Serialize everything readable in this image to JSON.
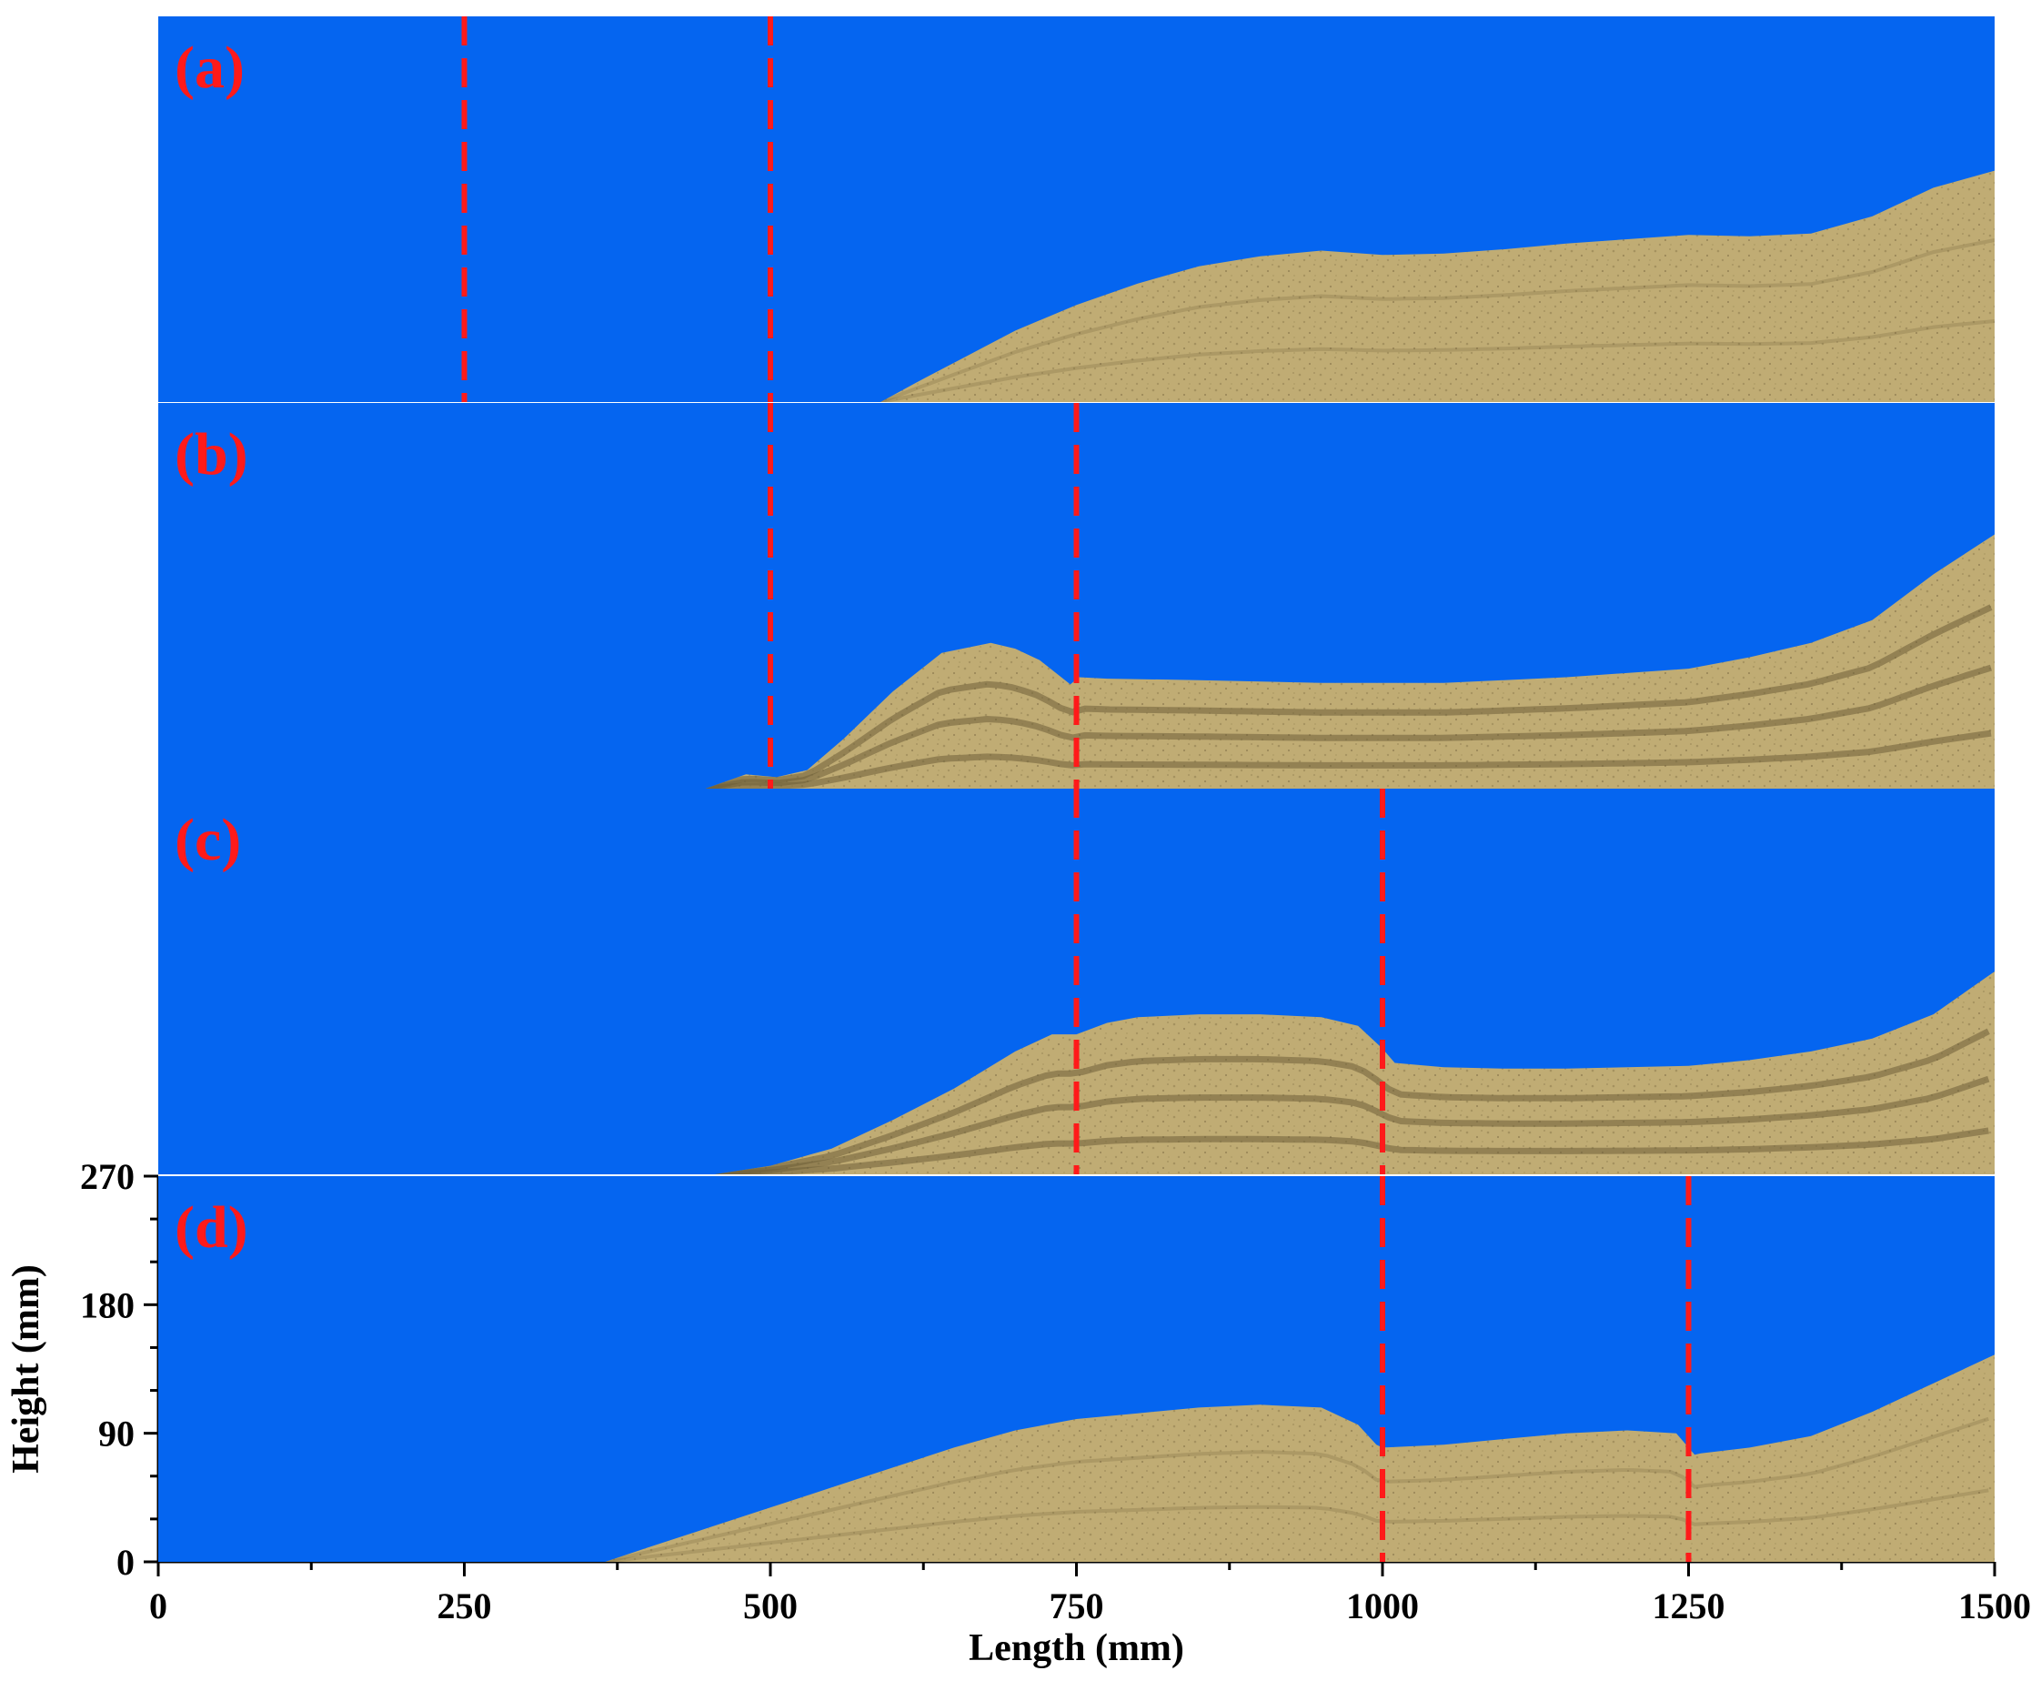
{
  "chart_data": {
    "type": "area",
    "xlabel": "Length (mm)",
    "ylabel": "Height (mm)",
    "xlim": [
      0,
      1500
    ],
    "ylim": [
      0,
      270
    ],
    "x_ticks": [
      "0",
      "250",
      "500",
      "750",
      "1000",
      "1250",
      "1500"
    ],
    "y_ticks": [
      "0",
      "90",
      "180",
      "270"
    ],
    "grid": false,
    "colors": {
      "water": "#0565F0",
      "sand": "#C0AC74",
      "sand_dark": "#6E5E38",
      "marker": "#FF1A1A",
      "panel_label": "#FF1A1A"
    },
    "panels": [
      {
        "label": "(a)",
        "profile_x": [
          590,
          620,
          660,
          700,
          750,
          800,
          850,
          900,
          950,
          1000,
          1050,
          1100,
          1150,
          1200,
          1250,
          1300,
          1350,
          1400,
          1450,
          1500
        ],
        "profile_y": [
          0,
          14,
          32,
          50,
          68,
          83,
          95,
          102,
          106,
          103,
          104,
          107,
          111,
          114,
          117,
          116,
          118,
          130,
          150,
          162
        ],
        "markers": [
          250,
          500
        ]
      },
      {
        "label": "(b)",
        "profile_x": [
          447,
          480,
          505,
          530,
          560,
          600,
          640,
          680,
          700,
          720,
          745,
          752,
          775,
          850,
          950,
          1050,
          1150,
          1250,
          1300,
          1350,
          1400,
          1450,
          1500
        ],
        "profile_y": [
          0,
          10,
          8,
          13,
          35,
          68,
          95,
          102,
          98,
          90,
          73,
          78,
          77,
          76,
          74,
          74,
          78,
          84,
          92,
          102,
          118,
          150,
          178
        ],
        "markers": [
          500,
          750
        ]
      },
      {
        "label": "(c)",
        "profile_x": [
          455,
          500,
          550,
          600,
          650,
          700,
          730,
          750,
          775,
          800,
          850,
          900,
          950,
          980,
          1000,
          1010,
          1050,
          1100,
          1150,
          1200,
          1250,
          1300,
          1350,
          1400,
          1450,
          1500
        ],
        "profile_y": [
          0,
          6,
          18,
          38,
          60,
          86,
          98,
          98,
          106,
          110,
          112,
          112,
          110,
          104,
          88,
          78,
          75,
          74,
          74,
          75,
          76,
          80,
          86,
          95,
          112,
          142
        ],
        "markers": [
          750,
          1000
        ]
      },
      {
        "label": "(d)",
        "profile_x": [
          365,
          400,
          450,
          500,
          550,
          600,
          650,
          700,
          750,
          800,
          850,
          900,
          950,
          980,
          995,
          1000,
          1050,
          1100,
          1150,
          1200,
          1240,
          1255,
          1260,
          1300,
          1350,
          1400,
          1450,
          1500
        ],
        "profile_y": [
          0,
          10,
          24,
          38,
          52,
          66,
          80,
          92,
          100,
          104,
          108,
          110,
          108,
          96,
          82,
          80,
          82,
          86,
          90,
          92,
          90,
          75,
          76,
          80,
          88,
          105,
          125,
          145
        ],
        "markers": [
          1000,
          1250
        ]
      }
    ]
  }
}
